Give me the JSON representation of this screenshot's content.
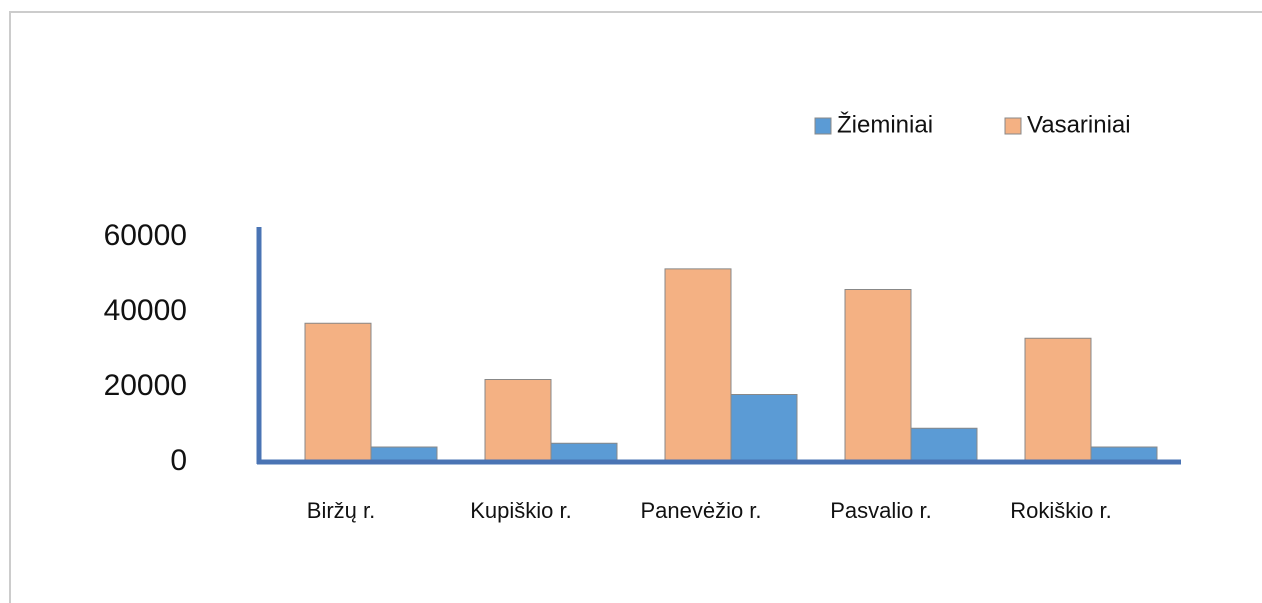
{
  "chart_data": {
    "type": "bar",
    "categories": [
      "Biržų r.",
      "Kupiškio r.",
      "Panevėžio r.",
      "Pasvalio r.",
      "Rokiškio r."
    ],
    "series": [
      {
        "name": "Žieminiai",
        "color": "#5b9bd5",
        "values": [
          4000,
          5000,
          18000,
          9000,
          4000
        ]
      },
      {
        "name": "Vasariniai",
        "color": "#f4b183",
        "values": [
          37000,
          22000,
          51500,
          46000,
          33000
        ]
      }
    ],
    "ylim": [
      0,
      60000
    ],
    "yticks": [
      0,
      20000,
      40000,
      60000
    ],
    "legend": "top-right"
  }
}
